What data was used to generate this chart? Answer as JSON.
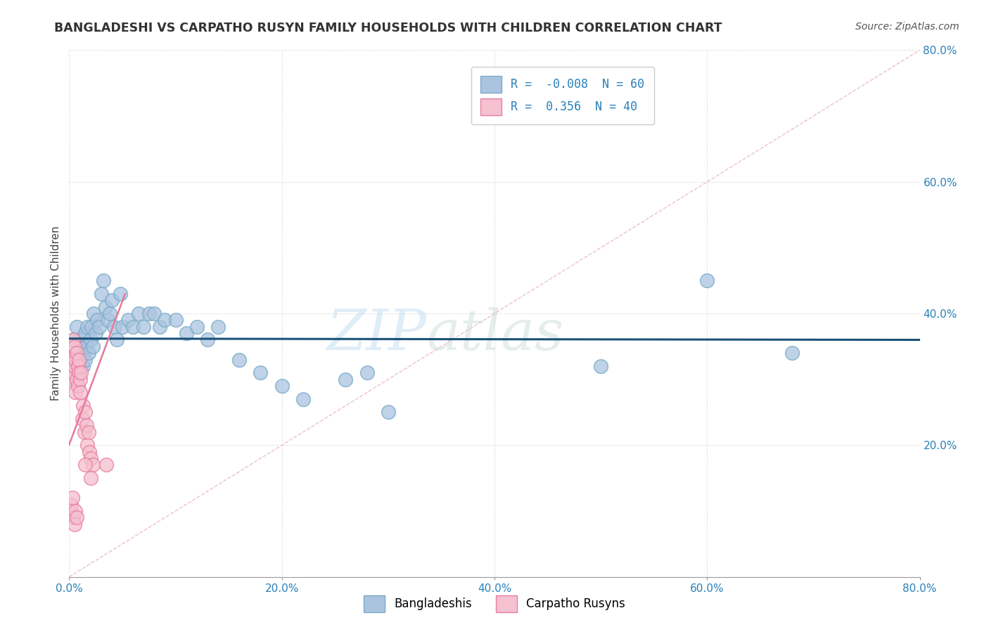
{
  "title": "BANGLADESHI VS CARPATHO RUSYN FAMILY HOUSEHOLDS WITH CHILDREN CORRELATION CHART",
  "source": "Source: ZipAtlas.com",
  "ylabel": "Family Households with Children",
  "xlim": [
    0.0,
    0.8
  ],
  "ylim": [
    0.0,
    0.8
  ],
  "xticks": [
    0.0,
    0.2,
    0.4,
    0.6,
    0.8
  ],
  "yticks": [
    0.2,
    0.4,
    0.6,
    0.8
  ],
  "xticklabels": [
    "0.0%",
    "20.0%",
    "40.0%",
    "60.0%",
    "80.0%"
  ],
  "yticklabels": [
    "20.0%",
    "40.0%",
    "60.0%",
    "80.0%"
  ],
  "legend_entries": [
    {
      "label": "R = -0.008  N = 60"
    },
    {
      "label": "R =  0.356  N = 40"
    }
  ],
  "watermark_zip": "ZIP",
  "watermark_atlas": "atlas",
  "diagonal_color": "#cccccc",
  "blue_line_color": "#1a5276",
  "pink_line_color": "#e8789a",
  "scatter_blue_color": "#aac4e0",
  "scatter_pink_color": "#f5c0d0",
  "scatter_blue_edge": "#7aaac8",
  "scatter_pink_edge": "#e87fa0",
  "title_color": "#333333",
  "axis_color": "#2980b9",
  "bg_color": "#ffffff",
  "legend_bottom_labels": [
    "Bangladeshis",
    "Carpatho Rusyns"
  ],
  "blue_R": -0.008,
  "blue_N": 60,
  "pink_R": 0.356,
  "pink_N": 40,
  "blue_points_x": [
    0.002,
    0.003,
    0.004,
    0.005,
    0.005,
    0.006,
    0.007,
    0.008,
    0.009,
    0.01,
    0.01,
    0.011,
    0.012,
    0.013,
    0.014,
    0.015,
    0.015,
    0.016,
    0.017,
    0.018,
    0.02,
    0.021,
    0.022,
    0.023,
    0.025,
    0.026,
    0.028,
    0.03,
    0.032,
    0.034,
    0.036,
    0.038,
    0.04,
    0.042,
    0.045,
    0.048,
    0.05,
    0.055,
    0.06,
    0.065,
    0.07,
    0.075,
    0.08,
    0.085,
    0.09,
    0.1,
    0.11,
    0.12,
    0.13,
    0.14,
    0.16,
    0.18,
    0.2,
    0.22,
    0.26,
    0.28,
    0.3,
    0.5,
    0.6,
    0.68
  ],
  "blue_points_y": [
    0.34,
    0.33,
    0.35,
    0.36,
    0.3,
    0.32,
    0.38,
    0.34,
    0.31,
    0.35,
    0.33,
    0.36,
    0.34,
    0.32,
    0.35,
    0.37,
    0.33,
    0.35,
    0.38,
    0.34,
    0.36,
    0.38,
    0.35,
    0.4,
    0.37,
    0.39,
    0.38,
    0.43,
    0.45,
    0.41,
    0.39,
    0.4,
    0.42,
    0.38,
    0.36,
    0.43,
    0.38,
    0.39,
    0.38,
    0.4,
    0.38,
    0.4,
    0.4,
    0.38,
    0.39,
    0.39,
    0.37,
    0.38,
    0.36,
    0.38,
    0.33,
    0.31,
    0.29,
    0.27,
    0.3,
    0.31,
    0.25,
    0.32,
    0.45,
    0.34
  ],
  "pink_points_x": [
    0.001,
    0.002,
    0.002,
    0.003,
    0.003,
    0.004,
    0.004,
    0.005,
    0.005,
    0.006,
    0.006,
    0.007,
    0.007,
    0.008,
    0.008,
    0.009,
    0.009,
    0.01,
    0.01,
    0.011,
    0.012,
    0.013,
    0.014,
    0.015,
    0.016,
    0.017,
    0.018,
    0.019,
    0.02,
    0.022,
    0.001,
    0.002,
    0.003,
    0.004,
    0.005,
    0.006,
    0.007,
    0.015,
    0.02,
    0.035
  ],
  "pink_points_y": [
    0.32,
    0.3,
    0.34,
    0.33,
    0.35,
    0.31,
    0.36,
    0.32,
    0.35,
    0.33,
    0.28,
    0.34,
    0.3,
    0.32,
    0.29,
    0.31,
    0.33,
    0.3,
    0.28,
    0.31,
    0.24,
    0.26,
    0.22,
    0.25,
    0.23,
    0.2,
    0.22,
    0.19,
    0.18,
    0.17,
    0.1,
    0.11,
    0.12,
    0.09,
    0.08,
    0.1,
    0.09,
    0.17,
    0.15,
    0.17
  ]
}
